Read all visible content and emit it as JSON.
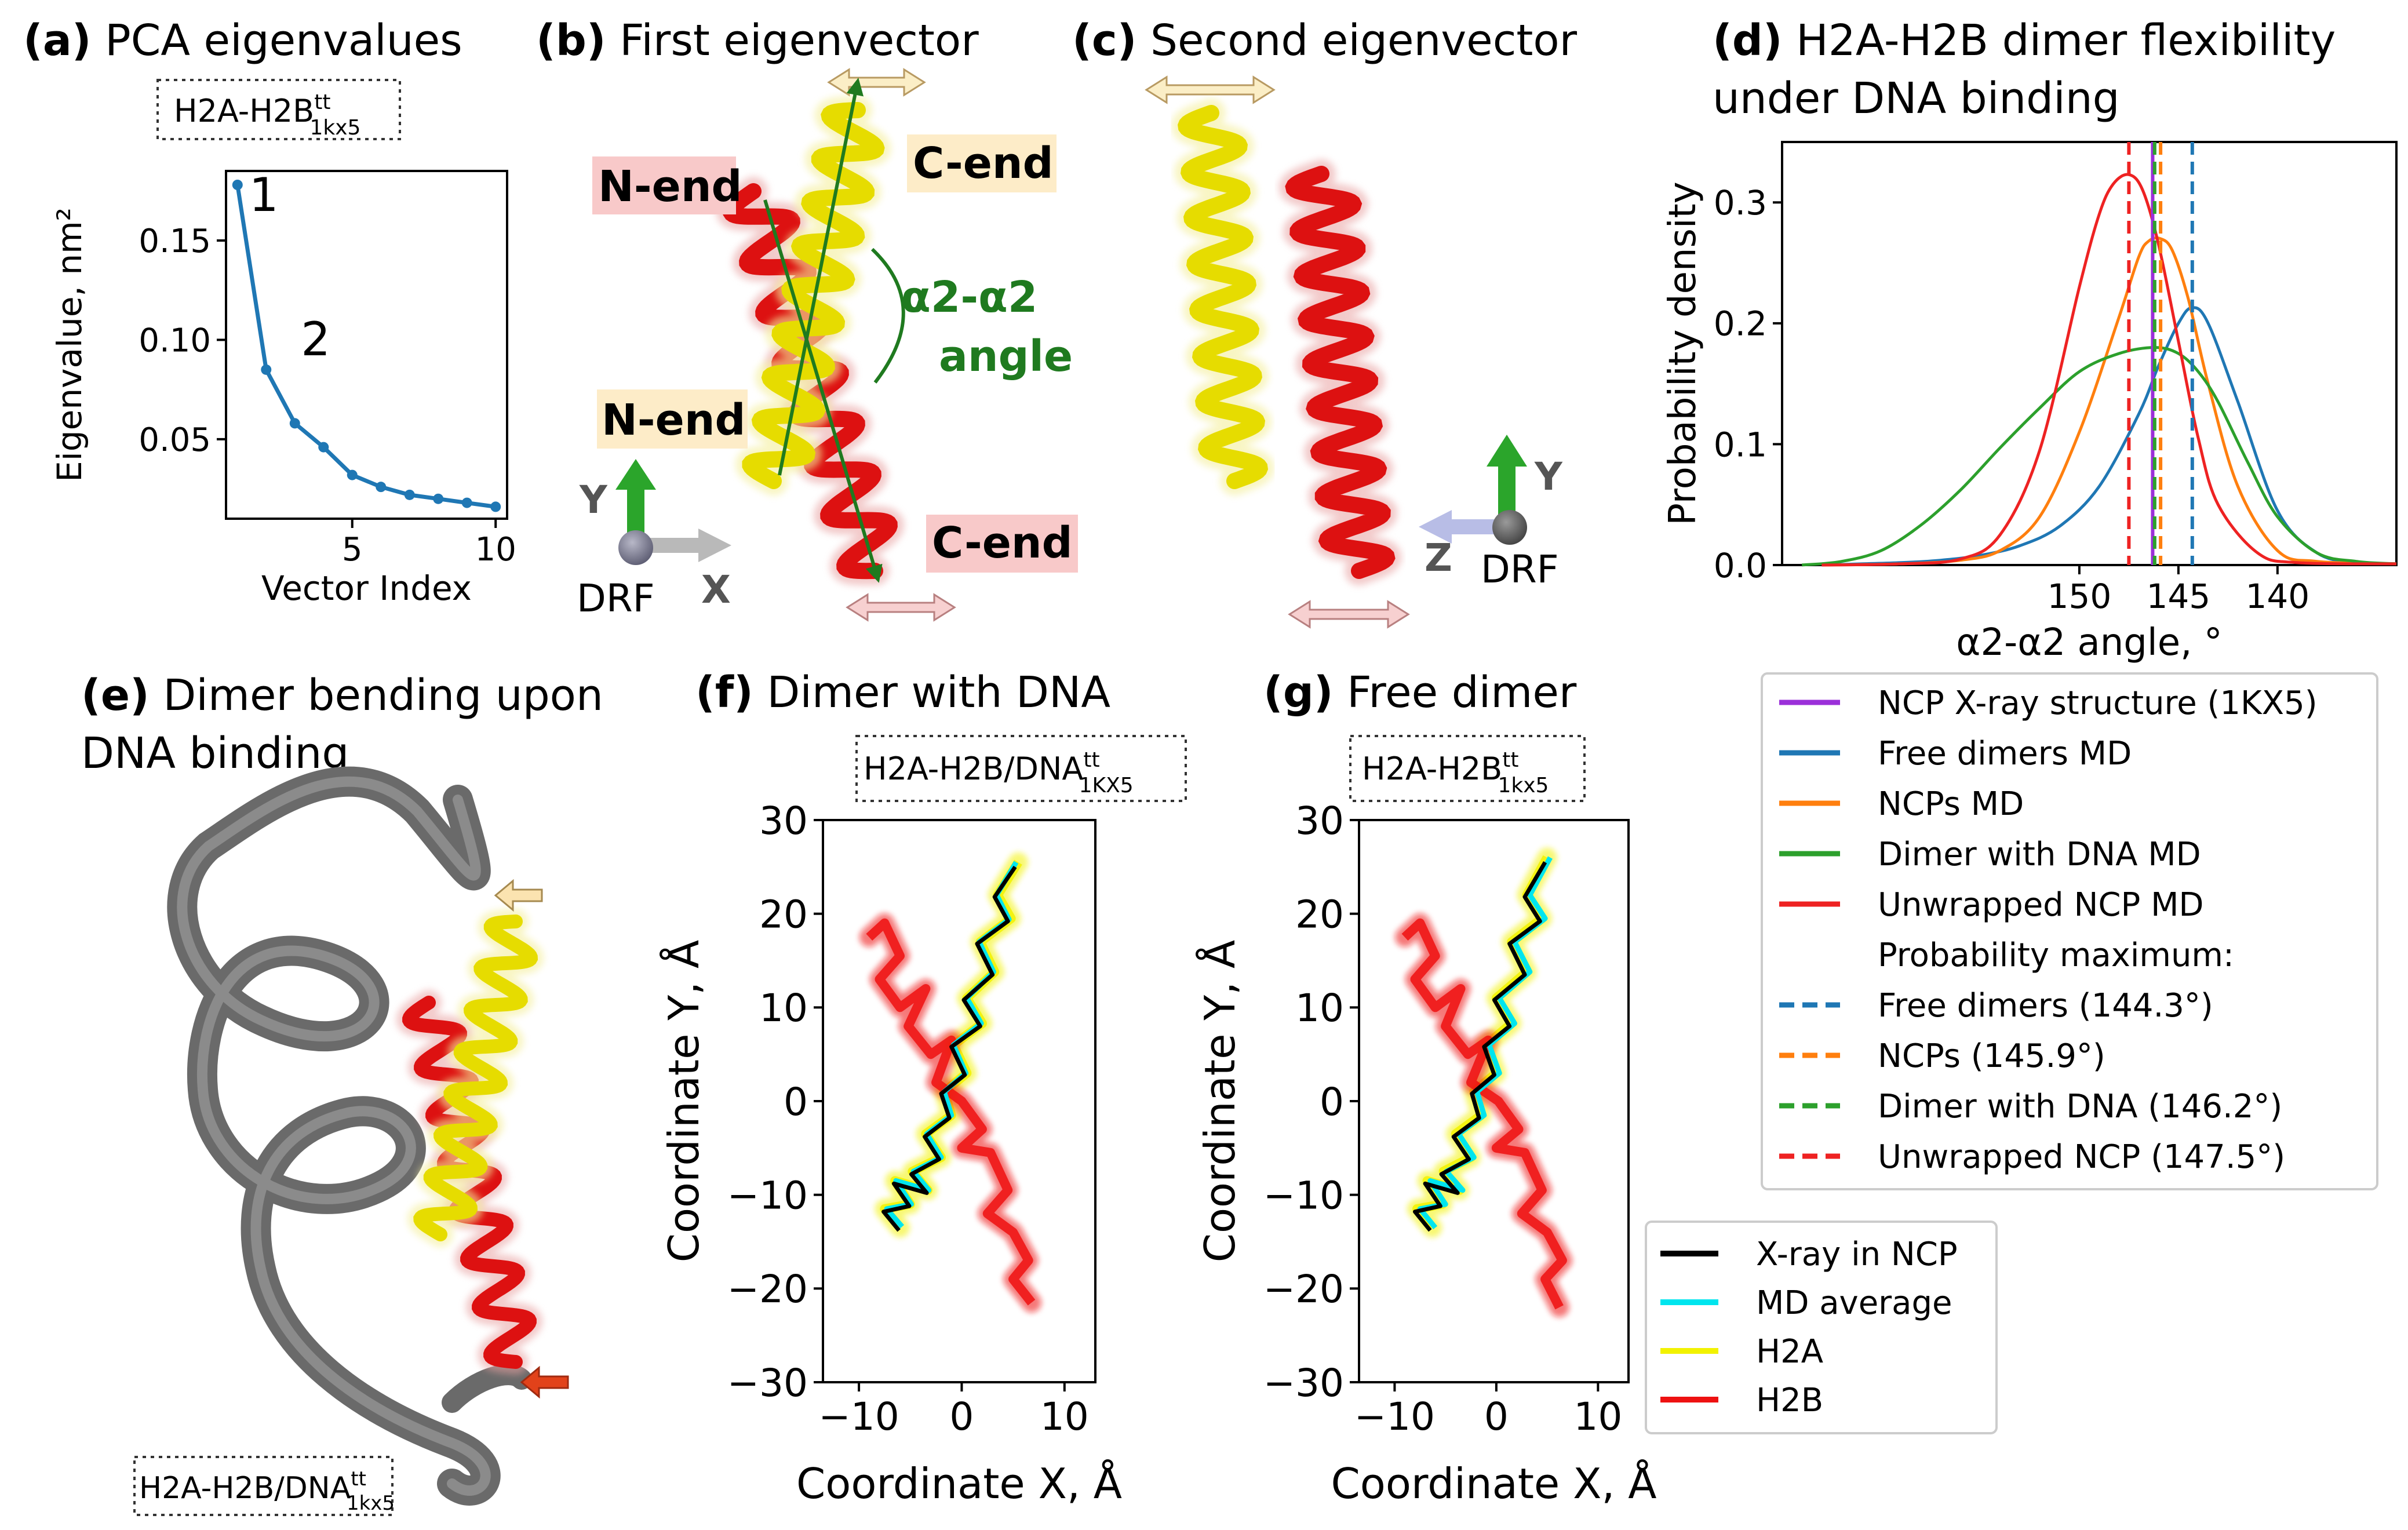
{
  "panels": {
    "a": {
      "letter": "(a)",
      "title": "PCA eigenvalues",
      "box_label": "H2A-H2B",
      "box_sup": "tt",
      "box_sub": "1kx5"
    },
    "b": {
      "letter": "(b)",
      "title": "First eigenvector",
      "labels": {
        "n_end_top": "N-end",
        "c_end_top": "C-end",
        "n_end_mid": "N-end",
        "c_end_bottom": "C-end",
        "angle_line1": "α2-α2",
        "angle_line2": "angle",
        "axis_y": "Y",
        "axis_x": "X",
        "drf": "DRF"
      }
    },
    "c": {
      "letter": "(c)",
      "title": "Second eigenvector",
      "labels": {
        "axis_y": "Y",
        "axis_z": "Z",
        "drf": "DRF"
      }
    },
    "d": {
      "letter": "(d)",
      "title_line1": "H2A-H2B dimer flexibility",
      "title_line2": "under DNA binding"
    },
    "e": {
      "letter": "(e)",
      "title_line1": "Dimer bending upon",
      "title_line2": "DNA binding",
      "box_label": "H2A-H2B/DNA",
      "box_sup": "tt",
      "box_sub": "1kx5"
    },
    "f": {
      "letter": "(f)",
      "title": "Dimer with DNA",
      "box_label": "H2A-H2B/DNA",
      "box_sup": "tt",
      "box_sub": "1KX5"
    },
    "g": {
      "letter": "(g)",
      "title": "Free dimer",
      "box_label": "H2A-H2B",
      "box_sup": "tt",
      "box_sub": "1kx5"
    }
  },
  "legend_d": {
    "items": [
      {
        "label": "NCP X-ray structure (1KX5)",
        "color": "#9b30d9",
        "style": "solid"
      },
      {
        "label": "Free dimers MD",
        "color": "#1f77b4",
        "style": "solid"
      },
      {
        "label": "NCPs MD",
        "color": "#ff7f0e",
        "style": "solid"
      },
      {
        "label": "Dimer with DNA MD",
        "color": "#2ca02c",
        "style": "solid"
      },
      {
        "label": "Unwrapped NCP MD",
        "color": "#ee2222",
        "style": "solid"
      },
      {
        "label": "Probability maximum:",
        "color": "",
        "style": "none"
      },
      {
        "label": "Free dimers (144.3°)",
        "color": "#1f77b4",
        "style": "dashed"
      },
      {
        "label": "NCPs (145.9°)",
        "color": "#ff7f0e",
        "style": "dashed"
      },
      {
        "label": "Dimer with DNA (146.2°)",
        "color": "#2ca02c",
        "style": "dashed"
      },
      {
        "label": "Unwrapped NCP (147.5°)",
        "color": "#ee2222",
        "style": "dashed"
      }
    ]
  },
  "legend_fg": {
    "items": [
      {
        "label": "X-ray in NCP",
        "color": "#000000"
      },
      {
        "label": "MD average",
        "color": "#00e5ee"
      },
      {
        "label": "H2A",
        "color": "#f2f200"
      },
      {
        "label": "H2B",
        "color": "#ee1111"
      }
    ]
  },
  "chart_data": [
    {
      "id": "a",
      "type": "line",
      "title": "PCA eigenvalues",
      "xlabel": "Vector Index",
      "ylabel": "Eigenvalue, nm²",
      "x": [
        1,
        2,
        3,
        4,
        5,
        6,
        7,
        8,
        9,
        10
      ],
      "values": [
        0.178,
        0.085,
        0.058,
        0.046,
        0.032,
        0.026,
        0.022,
        0.02,
        0.018,
        0.016
      ],
      "point_labels": [
        {
          "index": 0,
          "text": "1"
        },
        {
          "index": 1,
          "text": "2"
        }
      ],
      "xlim": [
        0.6,
        10.4
      ],
      "ylim": [
        0.01,
        0.185
      ],
      "xticks": [
        5,
        10
      ],
      "xtick_labels": [
        "5",
        "10"
      ],
      "yticks": [
        0.05,
        0.1,
        0.15
      ],
      "ytick_labels": [
        "0.05",
        "0.10",
        "0.15"
      ],
      "color": "#1f77b4"
    },
    {
      "id": "d",
      "type": "line",
      "title": "H2A-H2B dimer flexibility under DNA binding",
      "xlabel": "α2-α2 angle, °",
      "ylabel": "Probability density",
      "x_axis_inverted": true,
      "xlim": [
        134.0,
        165.0
      ],
      "ylim": [
        0.0,
        0.35
      ],
      "xticks": [
        150,
        145,
        140
      ],
      "xtick_labels": [
        "150",
        "145",
        "140"
      ],
      "yticks": [
        0.0,
        0.1,
        0.2,
        0.3
      ],
      "ytick_labels": [
        "0.0",
        "0.1",
        "0.2",
        "0.3"
      ],
      "series": [
        {
          "name": "Free dimers MD",
          "color": "#1f77b4",
          "x": [
            163,
            161,
            159,
            157,
            155,
            153,
            151,
            149,
            147,
            146,
            145,
            144.3,
            143.5,
            142,
            140,
            138,
            136,
            134
          ],
          "values": [
            0.0,
            0.001,
            0.002,
            0.004,
            0.008,
            0.016,
            0.032,
            0.065,
            0.125,
            0.165,
            0.2,
            0.213,
            0.2,
            0.135,
            0.045,
            0.01,
            0.002,
            0.001
          ]
        },
        {
          "name": "NCPs MD",
          "color": "#ff7f0e",
          "x": [
            163,
            159,
            156,
            154,
            152,
            150,
            148,
            147,
            146.5,
            145.9,
            145.3,
            144.5,
            143.5,
            142,
            140,
            138,
            134
          ],
          "values": [
            0.0,
            0.001,
            0.004,
            0.012,
            0.04,
            0.11,
            0.205,
            0.255,
            0.268,
            0.27,
            0.26,
            0.22,
            0.15,
            0.065,
            0.012,
            0.003,
            0.001
          ]
        },
        {
          "name": "Dimer with DNA MD",
          "color": "#2ca02c",
          "x": [
            164,
            162,
            160,
            158,
            156,
            154,
            152,
            150,
            148,
            146.2,
            145,
            144,
            143,
            141.5,
            140,
            138,
            136,
            134
          ],
          "values": [
            0.0,
            0.003,
            0.012,
            0.033,
            0.062,
            0.097,
            0.13,
            0.16,
            0.175,
            0.18,
            0.175,
            0.16,
            0.135,
            0.085,
            0.04,
            0.01,
            0.003,
            0.001
          ]
        },
        {
          "name": "Unwrapped NCP MD",
          "color": "#ee2222",
          "x": [
            163,
            159,
            156,
            154,
            152,
            150,
            149,
            148.3,
            147.5,
            146.8,
            146,
            145,
            144,
            143,
            141,
            139,
            134
          ],
          "values": [
            0.0,
            0.001,
            0.005,
            0.025,
            0.095,
            0.23,
            0.29,
            0.315,
            0.323,
            0.31,
            0.265,
            0.185,
            0.105,
            0.05,
            0.01,
            0.002,
            0.001
          ]
        }
      ],
      "vlines": [
        {
          "name": "NCP X-ray structure (1KX5)",
          "x": 146.3,
          "color": "#9b30d9",
          "style": "solid"
        },
        {
          "name": "Free dimers (144.3°)",
          "x": 144.3,
          "color": "#1f77b4",
          "style": "dashed"
        },
        {
          "name": "NCPs (145.9°)",
          "x": 145.9,
          "color": "#ff7f0e",
          "style": "dashed"
        },
        {
          "name": "Dimer with DNA (146.2°)",
          "x": 146.2,
          "color": "#2ca02c",
          "style": "dashed"
        },
        {
          "name": "Unwrapped NCP (147.5°)",
          "x": 147.5,
          "color": "#ee2222",
          "style": "dashed"
        }
      ]
    },
    {
      "id": "f",
      "type": "line",
      "title": "Dimer with DNA",
      "xlabel": "Coordinate X, Å",
      "ylabel": "Coordinate Y, Å",
      "xlim": [
        -13.5,
        13.0
      ],
      "ylim": [
        -30,
        30
      ],
      "xticks": [
        -10,
        0,
        10
      ],
      "xtick_labels": [
        "−10",
        "0",
        "10"
      ],
      "yticks": [
        -30,
        -20,
        -10,
        0,
        10,
        20,
        30
      ],
      "ytick_labels": [
        "−30",
        "−20",
        "−10",
        "0",
        "10",
        "20",
        "30"
      ],
      "series": [
        {
          "name": "H2A",
          "color": "#f2f200",
          "x": [
            5.5,
            3.5,
            4.8,
            1.8,
            3.2,
            0.5,
            2.0,
            -0.8,
            0.5,
            -1.7,
            -1.0,
            -3.5,
            -2.0,
            -4.8,
            -3.3,
            -6.5,
            -5.0,
            -7.5,
            -6.0
          ],
          "values": [
            25.5,
            22.0,
            19.5,
            17.0,
            13.8,
            11.0,
            8.3,
            6.0,
            3.0,
            1.0,
            -1.5,
            -3.5,
            -6.0,
            -7.5,
            -9.5,
            -8.5,
            -11.0,
            -11.5,
            -13.5
          ]
        },
        {
          "name": "H2B",
          "color": "#ee1111",
          "x": [
            -9.0,
            -7.5,
            -6.0,
            -8.0,
            -6.0,
            -3.5,
            -5.2,
            -3.0,
            -1.0,
            -2.5,
            0.0,
            2.0,
            0.0,
            2.8,
            4.5,
            2.5,
            5.0,
            6.5,
            5.0,
            6.8
          ],
          "values": [
            17.5,
            19.0,
            15.5,
            13.0,
            10.0,
            12.0,
            8.0,
            5.0,
            6.5,
            2.0,
            0.0,
            -3.0,
            -5.0,
            -5.5,
            -9.5,
            -12.0,
            -14.0,
            -17.0,
            -19.0,
            -21.5
          ]
        },
        {
          "name": "MD average",
          "color": "#00e5ee",
          "x": [
            5.3,
            3.4,
            4.6,
            1.7,
            3.1,
            0.5,
            1.9,
            -0.8,
            0.4,
            -1.7,
            -1.0,
            -3.4,
            -2.0,
            -4.7,
            -3.2,
            -6.4,
            -4.9,
            -7.3,
            -5.8
          ],
          "values": [
            25.5,
            22.0,
            19.4,
            17.0,
            13.8,
            11.0,
            8.3,
            6.0,
            3.0,
            1.0,
            -1.5,
            -3.5,
            -6.0,
            -7.5,
            -9.5,
            -8.5,
            -11.0,
            -11.5,
            -13.4
          ]
        },
        {
          "name": "X-ray in NCP",
          "color": "#000000",
          "x": [
            5.2,
            3.2,
            4.5,
            1.5,
            3.0,
            0.2,
            1.8,
            -1.0,
            0.3,
            -2.0,
            -1.2,
            -3.6,
            -2.2,
            -4.9,
            -3.4,
            -6.6,
            -5.1,
            -7.6,
            -6.1
          ],
          "values": [
            25.0,
            21.8,
            19.2,
            16.8,
            13.5,
            10.8,
            8.0,
            5.8,
            2.8,
            0.8,
            -1.8,
            -3.8,
            -6.2,
            -7.8,
            -9.8,
            -8.8,
            -11.2,
            -11.8,
            -13.8
          ]
        }
      ]
    },
    {
      "id": "g",
      "type": "line",
      "title": "Free dimer",
      "xlabel": "Coordinate X, Å",
      "ylabel": "Coordinate Y, Å",
      "xlim": [
        -13.5,
        13.0
      ],
      "ylim": [
        -30,
        30
      ],
      "xticks": [
        -10,
        0,
        10
      ],
      "xtick_labels": [
        "−10",
        "0",
        "10"
      ],
      "yticks": [
        -30,
        -20,
        -10,
        0,
        10,
        20,
        30
      ],
      "ytick_labels": [
        "−30",
        "−20",
        "−10",
        "0",
        "10",
        "20",
        "30"
      ],
      "series": [
        {
          "name": "H2A",
          "color": "#f2f200",
          "x": [
            5.0,
            3.0,
            4.5,
            1.5,
            3.0,
            0.0,
            1.5,
            -1.0,
            0.0,
            -2.2,
            -1.5,
            -4.0,
            -2.5,
            -5.2,
            -3.6,
            -6.8,
            -5.3,
            -7.8,
            -6.3
          ],
          "values": [
            26.0,
            22.0,
            19.5,
            17.0,
            13.8,
            11.0,
            8.3,
            6.0,
            3.0,
            1.0,
            -1.5,
            -3.5,
            -6.0,
            -7.5,
            -9.5,
            -8.5,
            -11.0,
            -11.5,
            -13.5
          ]
        },
        {
          "name": "H2B",
          "color": "#ee1111",
          "x": [
            -9.0,
            -7.5,
            -6.0,
            -8.0,
            -6.0,
            -3.5,
            -5.0,
            -2.8,
            -0.8,
            -2.5,
            0.2,
            2.2,
            0.0,
            2.8,
            4.5,
            2.5,
            5.0,
            6.5,
            4.8,
            6.2
          ],
          "values": [
            17.5,
            19.0,
            15.5,
            13.0,
            10.0,
            12.0,
            8.0,
            5.0,
            6.5,
            2.0,
            0.0,
            -3.0,
            -5.0,
            -5.5,
            -9.5,
            -12.0,
            -14.0,
            -17.0,
            -19.0,
            -22.0
          ]
        },
        {
          "name": "MD average",
          "color": "#00e5ee",
          "x": [
            5.3,
            3.3,
            4.8,
            1.8,
            3.3,
            0.3,
            1.8,
            -0.7,
            0.3,
            -1.9,
            -1.2,
            -3.7,
            -2.2,
            -4.9,
            -3.3,
            -6.5,
            -5.0,
            -7.5,
            -6.0
          ],
          "values": [
            26.0,
            22.0,
            19.5,
            17.0,
            13.8,
            11.0,
            8.3,
            6.0,
            3.0,
            1.0,
            -1.5,
            -3.5,
            -6.0,
            -7.5,
            -9.5,
            -8.5,
            -11.0,
            -11.5,
            -13.5
          ]
        },
        {
          "name": "X-ray in NCP",
          "color": "#000000",
          "x": [
            4.8,
            2.8,
            4.3,
            1.3,
            2.8,
            -0.2,
            1.3,
            -1.2,
            -0.2,
            -2.4,
            -1.7,
            -4.2,
            -2.7,
            -5.4,
            -3.8,
            -7.0,
            -5.5,
            -8.0,
            -6.5
          ],
          "values": [
            25.5,
            21.8,
            19.2,
            16.8,
            13.5,
            10.8,
            8.0,
            5.8,
            2.8,
            0.8,
            -1.8,
            -3.8,
            -6.2,
            -7.8,
            -9.8,
            -8.8,
            -11.2,
            -11.8,
            -13.8
          ]
        }
      ]
    }
  ]
}
